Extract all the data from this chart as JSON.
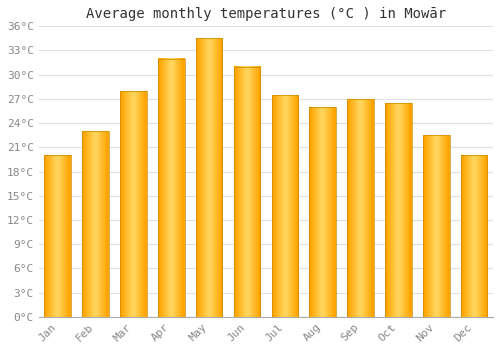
{
  "months": [
    "Jan",
    "Feb",
    "Mar",
    "Apr",
    "May",
    "Jun",
    "Jul",
    "Aug",
    "Sep",
    "Oct",
    "Nov",
    "Dec"
  ],
  "temperatures": [
    20.0,
    23.0,
    28.0,
    32.0,
    34.5,
    31.0,
    27.5,
    26.0,
    27.0,
    26.5,
    22.5,
    20.0
  ],
  "bar_color_center": "#FFD966",
  "bar_color_edge": "#FFA500",
  "title": "Average monthly temperatures (°C ) in Mowār",
  "ylim": [
    0,
    36
  ],
  "yticks": [
    0,
    3,
    6,
    9,
    12,
    15,
    18,
    21,
    24,
    27,
    30,
    33,
    36
  ],
  "ytick_labels": [
    "0°C",
    "3°C",
    "6°C",
    "9°C",
    "12°C",
    "15°C",
    "18°C",
    "21°C",
    "24°C",
    "27°C",
    "30°C",
    "33°C",
    "36°C"
  ],
  "background_color": "#FFFFFF",
  "grid_color": "#E0E0E0",
  "title_fontsize": 10,
  "tick_fontsize": 8,
  "bar_width": 0.7,
  "tick_color": "#888888"
}
